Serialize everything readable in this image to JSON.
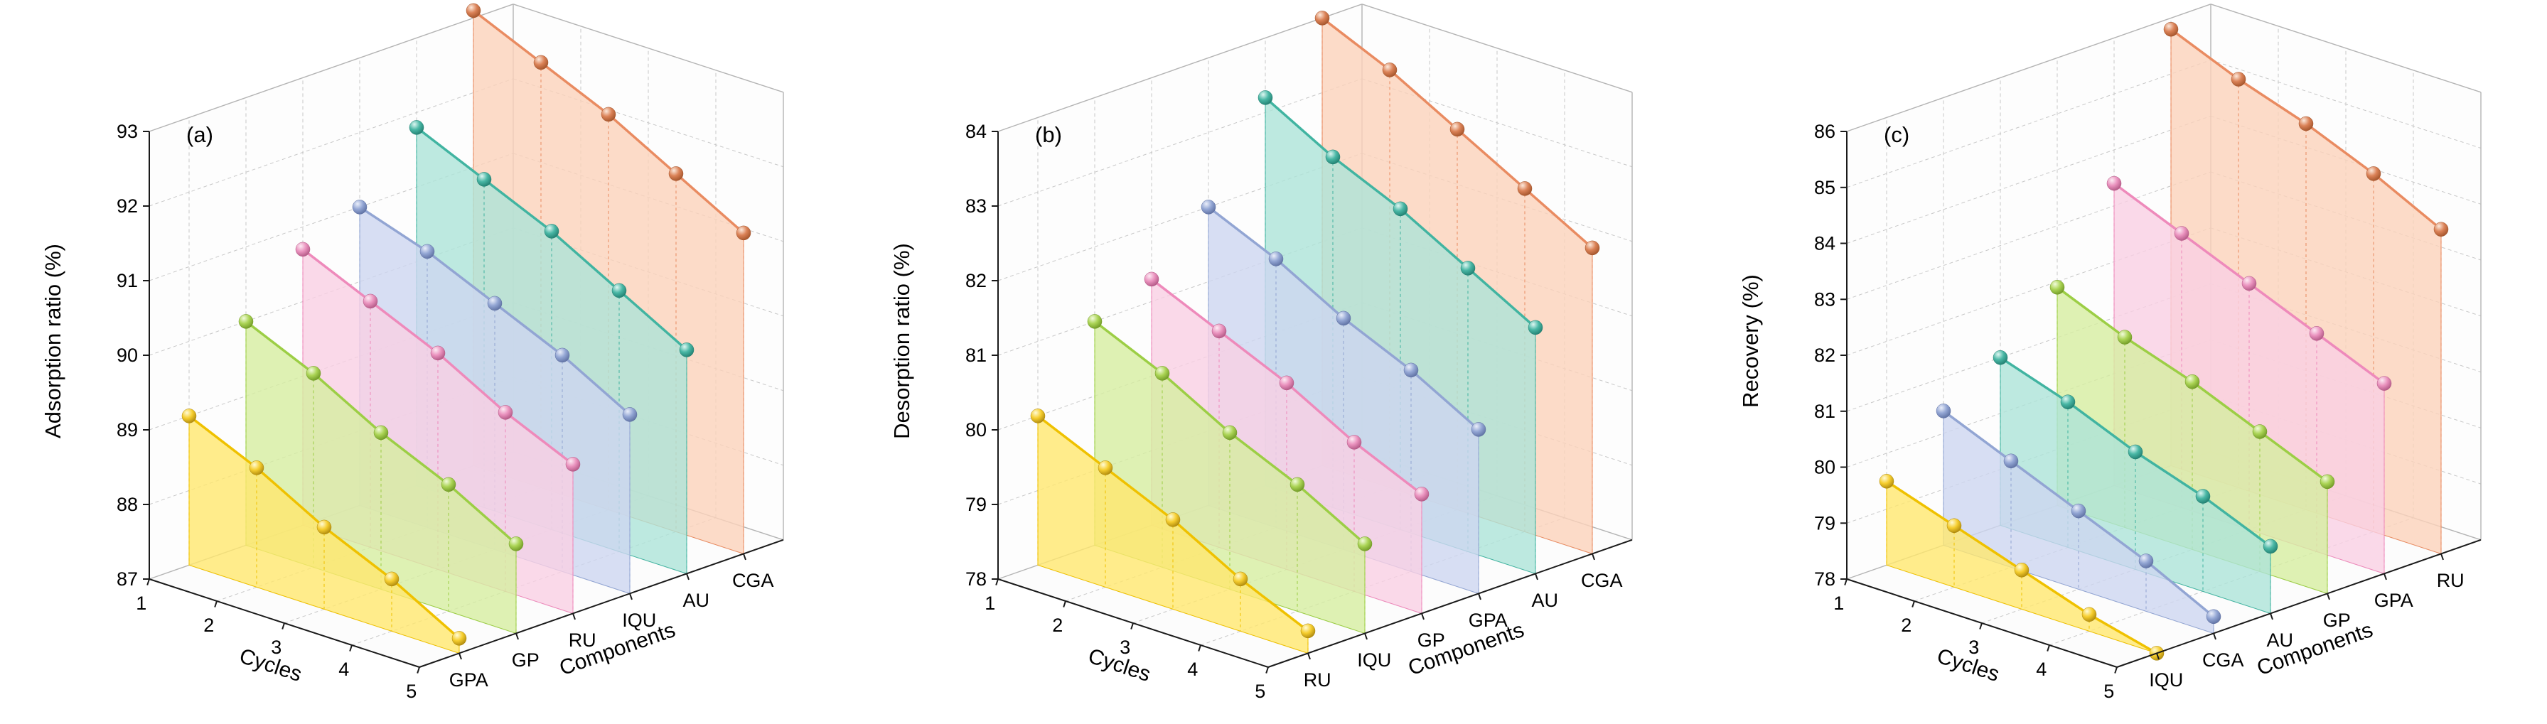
{
  "palette": {
    "grid": "#c8c8c8",
    "box": "#b4b4b4",
    "axis": "#1a1a1a",
    "text": "#000000",
    "background": "#ffffff",
    "series": {
      "yellow": {
        "fill": "#FFE76E",
        "line": "#EFC100",
        "sphere": "#F6CE2F",
        "dark": "#A8830A",
        "light": "#FFFBD6"
      },
      "green": {
        "fill": "#D6EDA0",
        "line": "#9CCE45",
        "sphere": "#ABD455",
        "dark": "#6B9421",
        "light": "#F2FBDC"
      },
      "pink": {
        "fill": "#F9D0E4",
        "line": "#EE8ABB",
        "sphere": "#EA92BE",
        "dark": "#AD5380",
        "light": "#FDEBF4"
      },
      "blue": {
        "fill": "#CDD6F0",
        "line": "#92A5D3",
        "sphere": "#93A6D4",
        "dark": "#5A6C9E",
        "light": "#EBEFFA"
      },
      "teal": {
        "fill": "#ACE4D8",
        "line": "#41B4A1",
        "sphere": "#49B7A5",
        "dark": "#1E7A6C",
        "light": "#DFF7F2"
      },
      "orange": {
        "fill": "#FBD2BA",
        "line": "#E98B61",
        "sphere": "#DB8257",
        "dark": "#9E5027",
        "light": "#FCE9DC"
      }
    }
  },
  "chart_data": [
    {
      "id": "a",
      "panel_label": "(a)",
      "type": "ribbon3d",
      "zlabel": "Adsorption ratio (%)",
      "xlabel": "Cycles",
      "ylabel": "Components",
      "zlim": [
        87,
        93
      ],
      "zticks": [
        87,
        88,
        89,
        90,
        91,
        92,
        93
      ],
      "cycles": [
        1,
        2,
        3,
        4,
        5
      ],
      "components": [
        "GPA",
        "GP",
        "RU",
        "IQU",
        "AU",
        "CGA"
      ],
      "grid": true,
      "series": [
        {
          "name": "GPA",
          "color": "yellow",
          "values": [
            89.0,
            88.6,
            88.1,
            87.7,
            87.2
          ]
        },
        {
          "name": "GP",
          "color": "green",
          "values": [
            90.0,
            89.6,
            89.1,
            88.7,
            88.2
          ]
        },
        {
          "name": "RU",
          "color": "pink",
          "values": [
            90.7,
            90.3,
            89.9,
            89.4,
            89.0
          ]
        },
        {
          "name": "IQU",
          "color": "blue",
          "values": [
            91.0,
            90.7,
            90.3,
            89.9,
            89.4
          ]
        },
        {
          "name": "AU",
          "color": "teal",
          "values": [
            91.8,
            91.4,
            91.0,
            90.5,
            90.0
          ]
        },
        {
          "name": "CGA",
          "color": "orange",
          "values": [
            93.1,
            92.7,
            92.3,
            91.8,
            91.3
          ]
        }
      ]
    },
    {
      "id": "b",
      "panel_label": "(b)",
      "type": "ribbon3d",
      "zlabel": "Desorption ratio (%)",
      "xlabel": "Cycles",
      "ylabel": "Components",
      "zlim": [
        78,
        84
      ],
      "zticks": [
        78,
        79,
        80,
        81,
        82,
        83,
        84
      ],
      "cycles": [
        1,
        2,
        3,
        4,
        5
      ],
      "components": [
        "RU",
        "IQU",
        "GP",
        "GPA",
        "AU",
        "CGA"
      ],
      "grid": true,
      "series": [
        {
          "name": "RU",
          "color": "yellow",
          "values": [
            80.0,
            79.6,
            79.2,
            78.7,
            78.3
          ]
        },
        {
          "name": "IQU",
          "color": "green",
          "values": [
            81.0,
            80.6,
            80.1,
            79.7,
            79.2
          ]
        },
        {
          "name": "GP",
          "color": "pink",
          "values": [
            81.3,
            80.9,
            80.5,
            80.0,
            79.6
          ]
        },
        {
          "name": "GPA",
          "color": "blue",
          "values": [
            82.0,
            81.6,
            81.1,
            80.7,
            80.2
          ]
        },
        {
          "name": "AU",
          "color": "teal",
          "values": [
            83.2,
            82.7,
            82.3,
            81.8,
            81.3
          ]
        },
        {
          "name": "CGA",
          "color": "orange",
          "values": [
            84.0,
            83.6,
            83.1,
            82.6,
            82.1
          ]
        }
      ]
    },
    {
      "id": "c",
      "panel_label": "(c)",
      "type": "ribbon3d",
      "zlabel": "Recovery (%)",
      "xlabel": "Cycles",
      "ylabel": "Components",
      "zlim": [
        78,
        86
      ],
      "zticks": [
        78,
        79,
        80,
        81,
        82,
        83,
        84,
        85,
        86
      ],
      "cycles": [
        1,
        2,
        3,
        4,
        5
      ],
      "components": [
        "IQU",
        "CGA",
        "AU",
        "GP",
        "GPA",
        "RU"
      ],
      "grid": true,
      "series": [
        {
          "name": "IQU",
          "color": "yellow",
          "values": [
            79.5,
            79.1,
            78.7,
            78.3,
            78.0
          ]
        },
        {
          "name": "CGA",
          "color": "blue",
          "values": [
            80.4,
            79.9,
            79.4,
            78.9,
            78.3
          ]
        },
        {
          "name": "AU",
          "color": "teal",
          "values": [
            81.0,
            80.6,
            80.1,
            79.7,
            79.2
          ]
        },
        {
          "name": "GP",
          "color": "green",
          "values": [
            81.9,
            81.4,
            81.0,
            80.5,
            80.0
          ]
        },
        {
          "name": "GPA",
          "color": "pink",
          "values": [
            83.4,
            82.9,
            82.4,
            81.9,
            81.4
          ]
        },
        {
          "name": "RU",
          "color": "orange",
          "values": [
            85.8,
            85.3,
            84.9,
            84.4,
            83.8
          ]
        }
      ]
    }
  ]
}
